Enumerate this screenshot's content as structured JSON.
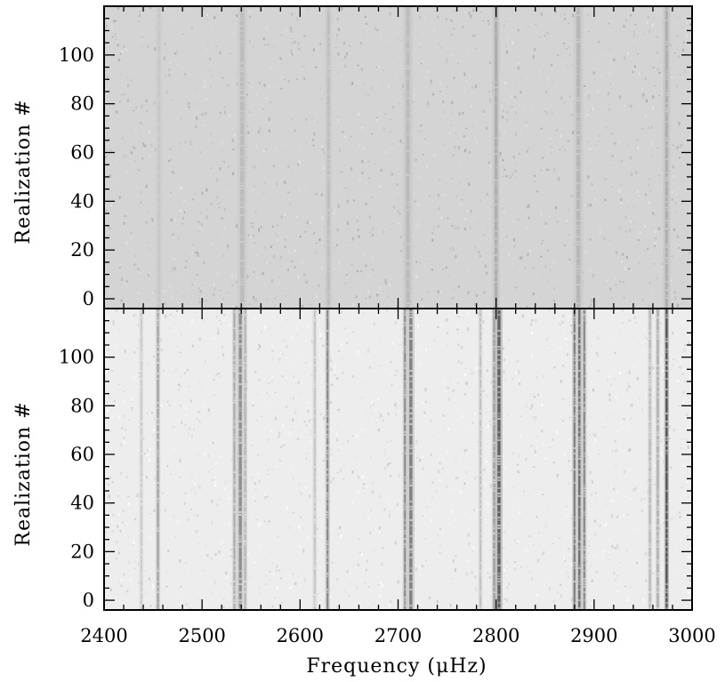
{
  "chart_data": [
    {
      "type": "heatmap",
      "panel": "top",
      "ylabel": "Realization #",
      "xlim": [
        2400,
        3000
      ],
      "ylim": [
        -4,
        120
      ],
      "yticks": [
        0,
        20,
        40,
        60,
        80,
        100
      ],
      "colormap": "grayscale (white = low power, black = high power)",
      "background_shade": 0.17,
      "noise_amplitude": 0.1,
      "ridges": [
        {
          "freq": 2456,
          "width": 3,
          "strength": 0.05
        },
        {
          "freq": 2541,
          "width": 4,
          "strength": 0.1
        },
        {
          "freq": 2629,
          "width": 3,
          "strength": 0.09
        },
        {
          "freq": 2710,
          "width": 4,
          "strength": 0.1
        },
        {
          "freq": 2800,
          "width": 3,
          "strength": 0.16
        },
        {
          "freq": 2884,
          "width": 4,
          "strength": 0.12
        },
        {
          "freq": 2974,
          "width": 3,
          "strength": 0.15
        }
      ]
    },
    {
      "type": "heatmap",
      "panel": "bottom",
      "ylabel": "Realization #",
      "xlabel": "Frequency (μHz)",
      "xlim": [
        2400,
        3000
      ],
      "ylim": [
        -4,
        120
      ],
      "xticks": [
        2400,
        2500,
        2600,
        2700,
        2800,
        2900,
        3000
      ],
      "yticks": [
        0,
        20,
        40,
        60,
        80,
        100
      ],
      "colormap": "grayscale (white = low power, black = high power)",
      "background_shade": 0.07,
      "noise_amplitude": 0.09,
      "ridges": [
        {
          "freq": 2438,
          "width": 2,
          "strength": 0.14
        },
        {
          "freq": 2455,
          "width": 2,
          "strength": 0.32
        },
        {
          "freq": 2533,
          "width": 2,
          "strength": 0.28
        },
        {
          "freq": 2539,
          "width": 3,
          "strength": 0.4
        },
        {
          "freq": 2544,
          "width": 2,
          "strength": 0.24
        },
        {
          "freq": 2615,
          "width": 2,
          "strength": 0.16
        },
        {
          "freq": 2628,
          "width": 2,
          "strength": 0.42
        },
        {
          "freq": 2707,
          "width": 2,
          "strength": 0.4
        },
        {
          "freq": 2713,
          "width": 3,
          "strength": 0.46
        },
        {
          "freq": 2784,
          "width": 2,
          "strength": 0.18
        },
        {
          "freq": 2798,
          "width": 2,
          "strength": 0.34
        },
        {
          "freq": 2803,
          "width": 3,
          "strength": 0.6
        },
        {
          "freq": 2880,
          "width": 2,
          "strength": 0.46
        },
        {
          "freq": 2885,
          "width": 2,
          "strength": 0.55
        },
        {
          "freq": 2890,
          "width": 2,
          "strength": 0.42
        },
        {
          "freq": 2957,
          "width": 2,
          "strength": 0.22
        },
        {
          "freq": 2965,
          "width": 2,
          "strength": 0.28
        },
        {
          "freq": 2974,
          "width": 2,
          "strength": 0.68
        }
      ]
    }
  ]
}
